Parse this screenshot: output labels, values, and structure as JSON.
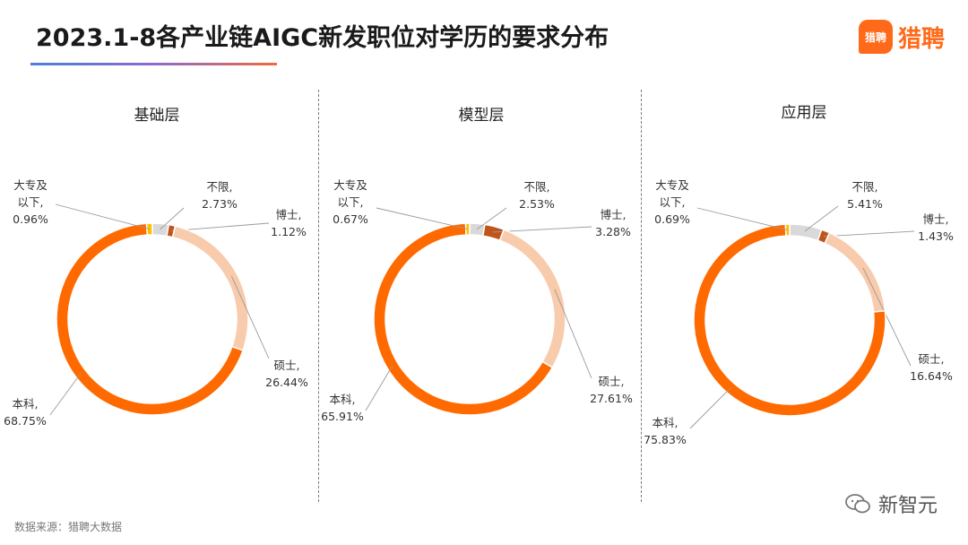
{
  "title": "2023.1-8各产业链AIGC新发职位对学历的要求分布",
  "logo": {
    "mark": "猎聘",
    "text": "猎聘"
  },
  "source": "数据来源：猎聘大数据",
  "watermark": "新智元",
  "colors": {
    "不限": "#d9d9d9",
    "博士": "#c0541a",
    "硕士": "#f8cbad",
    "本科": "#ff6a00",
    "大专及以下": "#ffc000"
  },
  "chart_data": [
    {
      "type": "pie",
      "title": "基础层",
      "slices": [
        {
          "label": "不限",
          "value": 2.73,
          "text": "2.73%"
        },
        {
          "label": "博士",
          "value": 1.12,
          "text": "1.12%"
        },
        {
          "label": "硕士",
          "value": 26.44,
          "text": "26.44%"
        },
        {
          "label": "本科",
          "value": 68.75,
          "text": "68.75%"
        },
        {
          "label": "大专及以下",
          "value": 0.96,
          "text": "0.96%"
        }
      ]
    },
    {
      "type": "pie",
      "title": "模型层",
      "slices": [
        {
          "label": "不限",
          "value": 2.53,
          "text": "2.53%"
        },
        {
          "label": "博士",
          "value": 3.28,
          "text": "3.28%"
        },
        {
          "label": "硕士",
          "value": 27.61,
          "text": "27.61%"
        },
        {
          "label": "本科",
          "value": 65.91,
          "text": "65.91%"
        },
        {
          "label": "大专及以下",
          "value": 0.67,
          "text": "0.67%"
        }
      ]
    },
    {
      "type": "pie",
      "title": "应用层",
      "slices": [
        {
          "label": "不限",
          "value": 5.41,
          "text": "5.41%"
        },
        {
          "label": "博士",
          "value": 1.43,
          "text": "1.43%"
        },
        {
          "label": "硕士",
          "value": 16.64,
          "text": "16.64%"
        },
        {
          "label": "本科",
          "value": 75.83,
          "text": "75.83%"
        },
        {
          "label": "大专及以下",
          "value": 0.69,
          "text": "0.69%"
        }
      ]
    }
  ]
}
